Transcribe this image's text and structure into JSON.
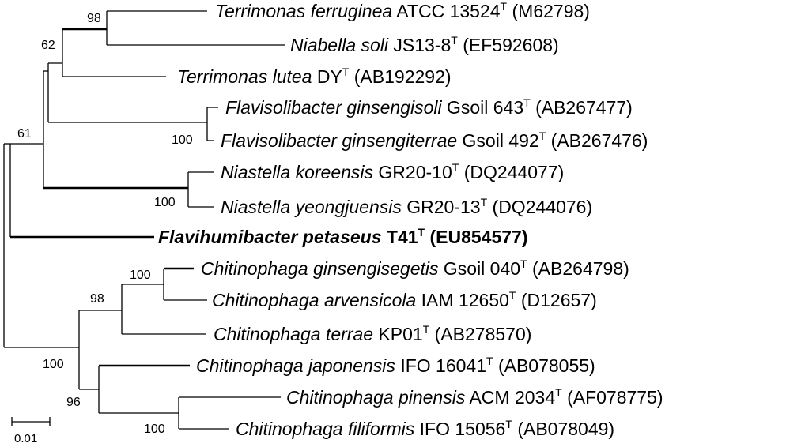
{
  "taxa": [
    {
      "genus_species": "Terrimonas ferruginea",
      "strain": "ATCC 13524",
      "type_mark": "T",
      "accession": "(M62798)",
      "bold": false
    },
    {
      "genus_species": "Niabella soli",
      "strain": "JS13-8",
      "type_mark": "T",
      "accession": "(EF592608)",
      "bold": false
    },
    {
      "genus_species": "Terrimonas lutea",
      "strain": "DY",
      "type_mark": "T",
      "accession": "(AB192292)",
      "bold": false
    },
    {
      "genus_species": "Flavisolibacter ginsengisoli",
      "strain": "Gsoil 643",
      "type_mark": "T",
      "accession": "(AB267477)",
      "bold": false
    },
    {
      "genus_species": "Flavisolibacter ginsengiterrae",
      "strain": "Gsoil 492",
      "type_mark": "T",
      "accession": "(AB267476)",
      "bold": false
    },
    {
      "genus_species": "Niastella koreensis",
      "strain": "GR20-10",
      "type_mark": "T",
      "accession": "(DQ244077)",
      "bold": false
    },
    {
      "genus_species": "Niastella yeongjuensis",
      "strain": "GR20-13",
      "type_mark": "T",
      "accession": "(DQ244076)",
      "bold": false
    },
    {
      "genus_species": "Flavihumibacter petaseus",
      "strain": "T41",
      "type_mark": "T",
      "accession": "(EU854577)",
      "bold": true
    },
    {
      "genus_species": "Chitinophaga ginsengisegetis",
      "strain": "Gsoil 040",
      "type_mark": "T",
      "accession": "(AB264798)",
      "bold": false
    },
    {
      "genus_species": "Chitinophaga arvensicola",
      "strain": "IAM 12650",
      "type_mark": "T",
      "accession": "(D12657)",
      "bold": false
    },
    {
      "genus_species": "Chitinophaga terrae",
      "strain": "KP01",
      "type_mark": "T",
      "accession": "(AB278570)",
      "bold": false
    },
    {
      "genus_species": "Chitinophaga japonensis",
      "strain": "IFO 16041",
      "type_mark": "T",
      "accession": "(AB078055)",
      "bold": false
    },
    {
      "genus_species": "Chitinophaga pinensis",
      "strain": "ACM 2034",
      "type_mark": "T",
      "accession": "(AF078775)",
      "bold": false
    },
    {
      "genus_species": "Chitinophaga filiformis",
      "strain": "IFO 15056",
      "type_mark": "T",
      "accession": "(AB078049)",
      "bold": false
    }
  ],
  "bootstrap": [
    "98",
    "62",
    "61",
    "100",
    "100",
    "100",
    "98",
    "100",
    "96",
    "100"
  ],
  "scale_bar": {
    "label": "0.01"
  }
}
